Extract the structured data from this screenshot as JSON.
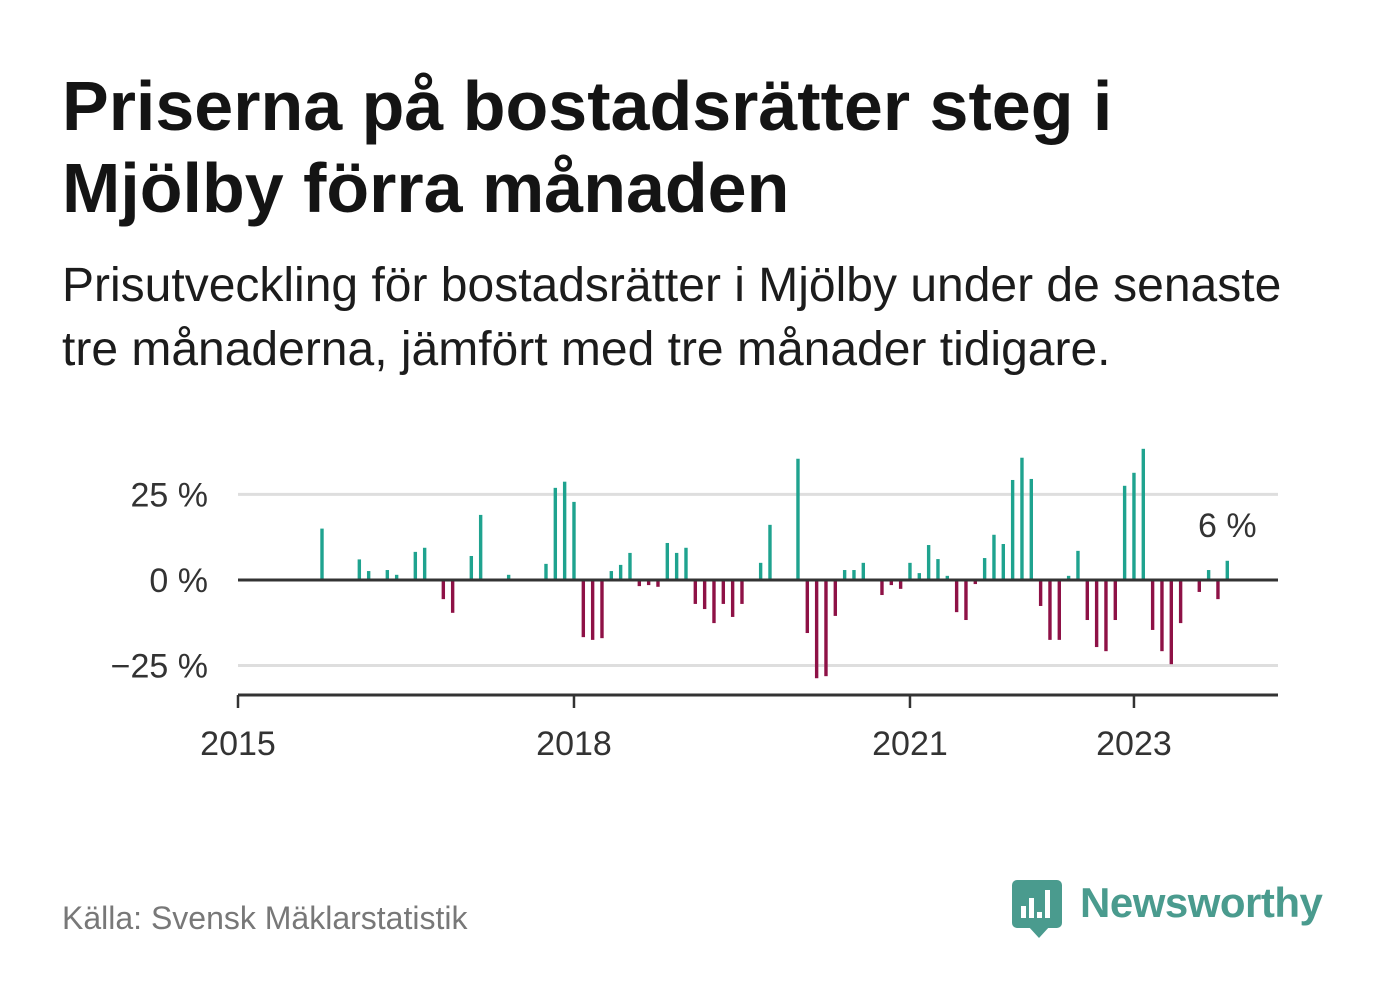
{
  "chart_data": {
    "type": "bar",
    "title": "Priserna på bostadsrätter steg i Mjölby förra månaden",
    "subtitle": "Prisutveckling för bostadsrätter i Mjölby under de senaste tre månaderna, jämfört med tre månader tidigare.",
    "x": [
      "2015-10",
      "2016-02",
      "2016-03",
      "2016-05",
      "2016-06",
      "2016-08",
      "2016-09",
      "2016-11",
      "2016-12",
      "2017-02",
      "2017-03",
      "2017-06",
      "2017-10",
      "2017-11",
      "2017-12",
      "2018-01",
      "2018-02",
      "2018-03",
      "2018-04",
      "2018-05",
      "2018-06",
      "2018-07",
      "2018-08",
      "2018-09",
      "2018-10",
      "2018-11",
      "2018-12",
      "2019-01",
      "2019-02",
      "2019-03",
      "2019-04",
      "2019-05",
      "2019-06",
      "2019-07",
      "2019-09",
      "2019-10",
      "2020-01",
      "2020-02",
      "2020-03",
      "2020-04",
      "2020-05",
      "2020-06",
      "2020-07",
      "2020-08",
      "2020-10",
      "2020-11",
      "2020-12",
      "2021-01",
      "2021-02",
      "2021-03",
      "2021-04",
      "2021-05",
      "2021-06",
      "2021-07",
      "2021-08",
      "2021-09",
      "2021-10",
      "2021-11",
      "2021-12",
      "2022-01",
      "2022-02",
      "2022-03",
      "2022-04",
      "2022-05",
      "2022-06",
      "2022-07",
      "2022-08",
      "2022-09",
      "2022-10",
      "2022-11",
      "2022-12",
      "2023-01",
      "2023-02",
      "2023-03",
      "2023-04",
      "2023-05",
      "2023-06",
      "2023-08",
      "2023-09",
      "2023-10",
      "2023-11"
    ],
    "values": [
      15.0,
      6.0,
      2.6,
      2.9,
      1.5,
      8.2,
      9.4,
      -5.6,
      -9.6,
      7.0,
      19.0,
      1.5,
      4.7,
      26.9,
      28.7,
      22.8,
      -16.7,
      -17.5,
      -17.0,
      2.6,
      4.4,
      7.9,
      -1.8,
      -1.5,
      -2.0,
      10.8,
      7.9,
      9.4,
      -7.0,
      -8.5,
      -12.6,
      -7.0,
      -10.8,
      -7.0,
      5.0,
      16.1,
      35.4,
      -15.5,
      -28.7,
      -28.1,
      -10.5,
      2.9,
      2.9,
      5.0,
      -4.4,
      -1.5,
      -2.6,
      5.0,
      2.0,
      10.2,
      6.1,
      1.2,
      -9.4,
      -11.7,
      -1.2,
      6.4,
      13.2,
      10.5,
      29.2,
      35.7,
      29.5,
      -7.6,
      -17.5,
      -17.5,
      1.2,
      8.5,
      -11.7,
      -19.6,
      -20.8,
      -11.7,
      27.5,
      31.3,
      38.3,
      -14.6,
      -20.8,
      -24.6,
      -12.6,
      -3.5,
      2.9,
      -5.6,
      5.6
    ],
    "xlim": [
      "2015-01-01",
      "2024-04-14"
    ],
    "ylim": [
      -33.6,
      40
    ],
    "grid": "horizontal",
    "x_ticks": [
      {
        "date": "2015-01",
        "label": "2015"
      },
      {
        "date": "2018-01",
        "label": "2018"
      },
      {
        "date": "2021-01",
        "label": "2021"
      },
      {
        "date": "2023-01",
        "label": "2023"
      }
    ],
    "y_ticks": [
      {
        "value": 25,
        "label": "25 %"
      },
      {
        "value": 0,
        "label": "0 %"
      },
      {
        "value": -25,
        "label": "−25 %"
      }
    ],
    "annotations": [
      {
        "date": "2023-11",
        "text": "6 %"
      }
    ],
    "colors": {
      "positive": "#1fa38f",
      "negative": "#8e1146",
      "grid": "#dedede",
      "axis": "#333333"
    }
  },
  "footer": {
    "source": "Källa: Svensk Mäklarstatistik"
  },
  "logo": {
    "icon": "newsworthy-bubble-icon",
    "text": "Newsworthy",
    "color": "#4a9b8e"
  }
}
